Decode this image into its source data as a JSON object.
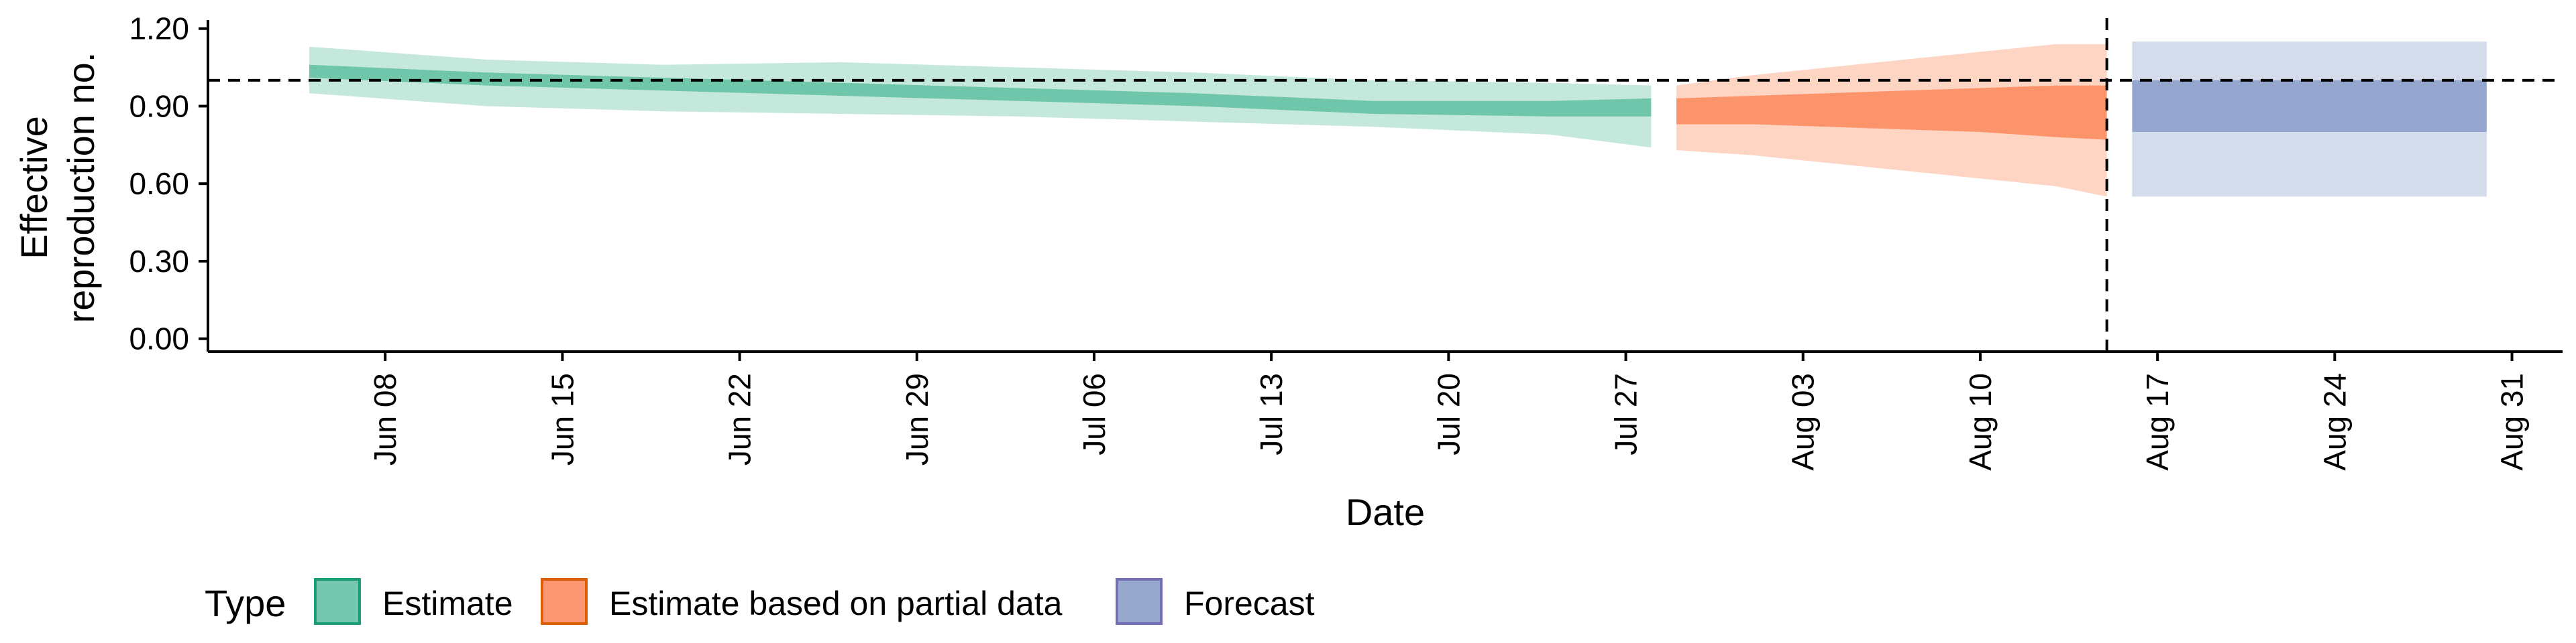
{
  "chart_data": {
    "type": "area",
    "xlabel": "Date",
    "ylabel": "Effective reproduction no.",
    "ylim": [
      -0.05,
      1.22
    ],
    "xlim": [
      "2020-06-01",
      "2020-09-02"
    ],
    "reference_line_y": 1.0,
    "reference_line_date": "2020-08-15",
    "x_ticks": [
      "2020-06-08",
      "2020-06-15",
      "2020-06-22",
      "2020-06-29",
      "2020-07-06",
      "2020-07-13",
      "2020-07-20",
      "2020-07-27",
      "2020-08-03",
      "2020-08-10",
      "2020-08-17",
      "2020-08-24",
      "2020-08-31"
    ],
    "x_tick_labels": [
      "Jun 08",
      "Jun 15",
      "Jun 22",
      "Jun 29",
      "Jul 06",
      "Jul 13",
      "Jul 20",
      "Jul 27",
      "Aug 03",
      "Aug 10",
      "Aug 17",
      "Aug 24",
      "Aug 31"
    ],
    "y_ticks": [
      0,
      0.3,
      0.6,
      0.9,
      1.2
    ],
    "y_tick_labels": [
      "0.00",
      "0.30",
      "0.60",
      "0.90",
      "1.20"
    ],
    "legend": {
      "title": "Type",
      "position": "bottom",
      "entries": [
        "Estimate",
        "Estimate based on partial data",
        "Forecast"
      ]
    },
    "series": [
      {
        "name": "Estimate",
        "color": "#66c2a5",
        "x": [
          "2020-06-05",
          "2020-06-12",
          "2020-06-19",
          "2020-06-26",
          "2020-07-03",
          "2020-07-10",
          "2020-07-17",
          "2020-07-24",
          "2020-07-28"
        ],
        "lower_90": [
          0.95,
          0.9,
          0.88,
          0.87,
          0.86,
          0.84,
          0.82,
          0.79,
          0.74
        ],
        "upper_90": [
          1.13,
          1.08,
          1.06,
          1.07,
          1.05,
          1.03,
          1.0,
          0.99,
          0.98
        ],
        "lower_50": [
          1.01,
          0.98,
          0.96,
          0.94,
          0.92,
          0.9,
          0.87,
          0.86,
          0.86
        ],
        "upper_50": [
          1.06,
          1.03,
          1.01,
          0.99,
          0.97,
          0.95,
          0.92,
          0.92,
          0.93
        ]
      },
      {
        "name": "Estimate based on partial data",
        "color": "#fc8d62",
        "x": [
          "2020-07-29",
          "2020-08-01",
          "2020-08-04",
          "2020-08-07",
          "2020-08-10",
          "2020-08-13",
          "2020-08-15"
        ],
        "lower_90": [
          0.73,
          0.71,
          0.68,
          0.65,
          0.62,
          0.59,
          0.55
        ],
        "upper_90": [
          0.98,
          1.02,
          1.05,
          1.08,
          1.11,
          1.14,
          1.14
        ],
        "lower_50": [
          0.83,
          0.83,
          0.82,
          0.81,
          0.8,
          0.78,
          0.77
        ],
        "upper_50": [
          0.93,
          0.94,
          0.95,
          0.96,
          0.97,
          0.98,
          0.98
        ]
      },
      {
        "name": "Forecast",
        "color": "#8da0cb",
        "x": [
          "2020-08-16",
          "2020-08-30"
        ],
        "lower_90": [
          0.55,
          0.55
        ],
        "upper_90": [
          1.15,
          1.15
        ],
        "lower_50": [
          0.8,
          0.8
        ],
        "upper_50": [
          1.0,
          1.0
        ]
      }
    ]
  }
}
